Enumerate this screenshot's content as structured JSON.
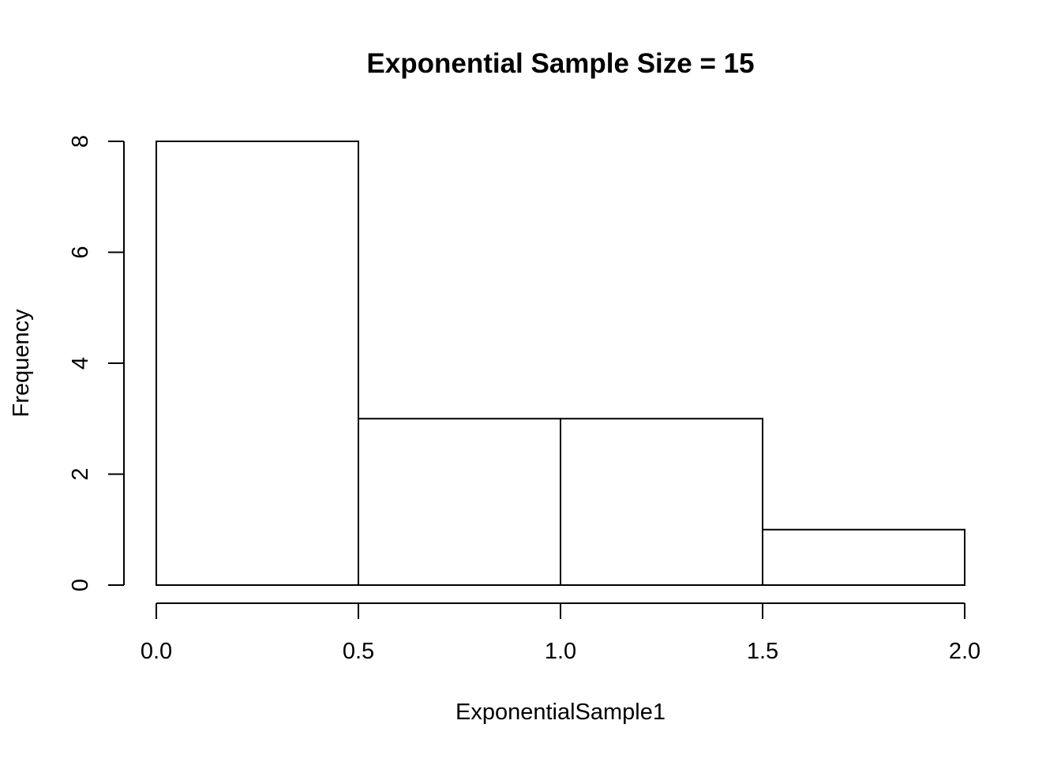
{
  "chart_data": {
    "type": "bar",
    "title": "Exponential Sample Size =  15",
    "xlabel": "ExponentialSample1",
    "ylabel": "Frequency",
    "bins": [
      {
        "start": 0.0,
        "end": 0.5,
        "count": 8
      },
      {
        "start": 0.5,
        "end": 1.0,
        "count": 3
      },
      {
        "start": 1.0,
        "end": 1.5,
        "count": 3
      },
      {
        "start": 1.5,
        "end": 2.0,
        "count": 1
      }
    ],
    "xlim": [
      0.0,
      2.0
    ],
    "ylim": [
      0,
      8
    ],
    "x_ticks": [
      "0.0",
      "0.5",
      "1.0",
      "1.5",
      "2.0"
    ],
    "y_ticks": [
      "0",
      "2",
      "4",
      "6",
      "8"
    ],
    "grid": false,
    "legend": "none",
    "colors": {
      "fill": "#ffffff",
      "stroke": "#000000"
    }
  }
}
